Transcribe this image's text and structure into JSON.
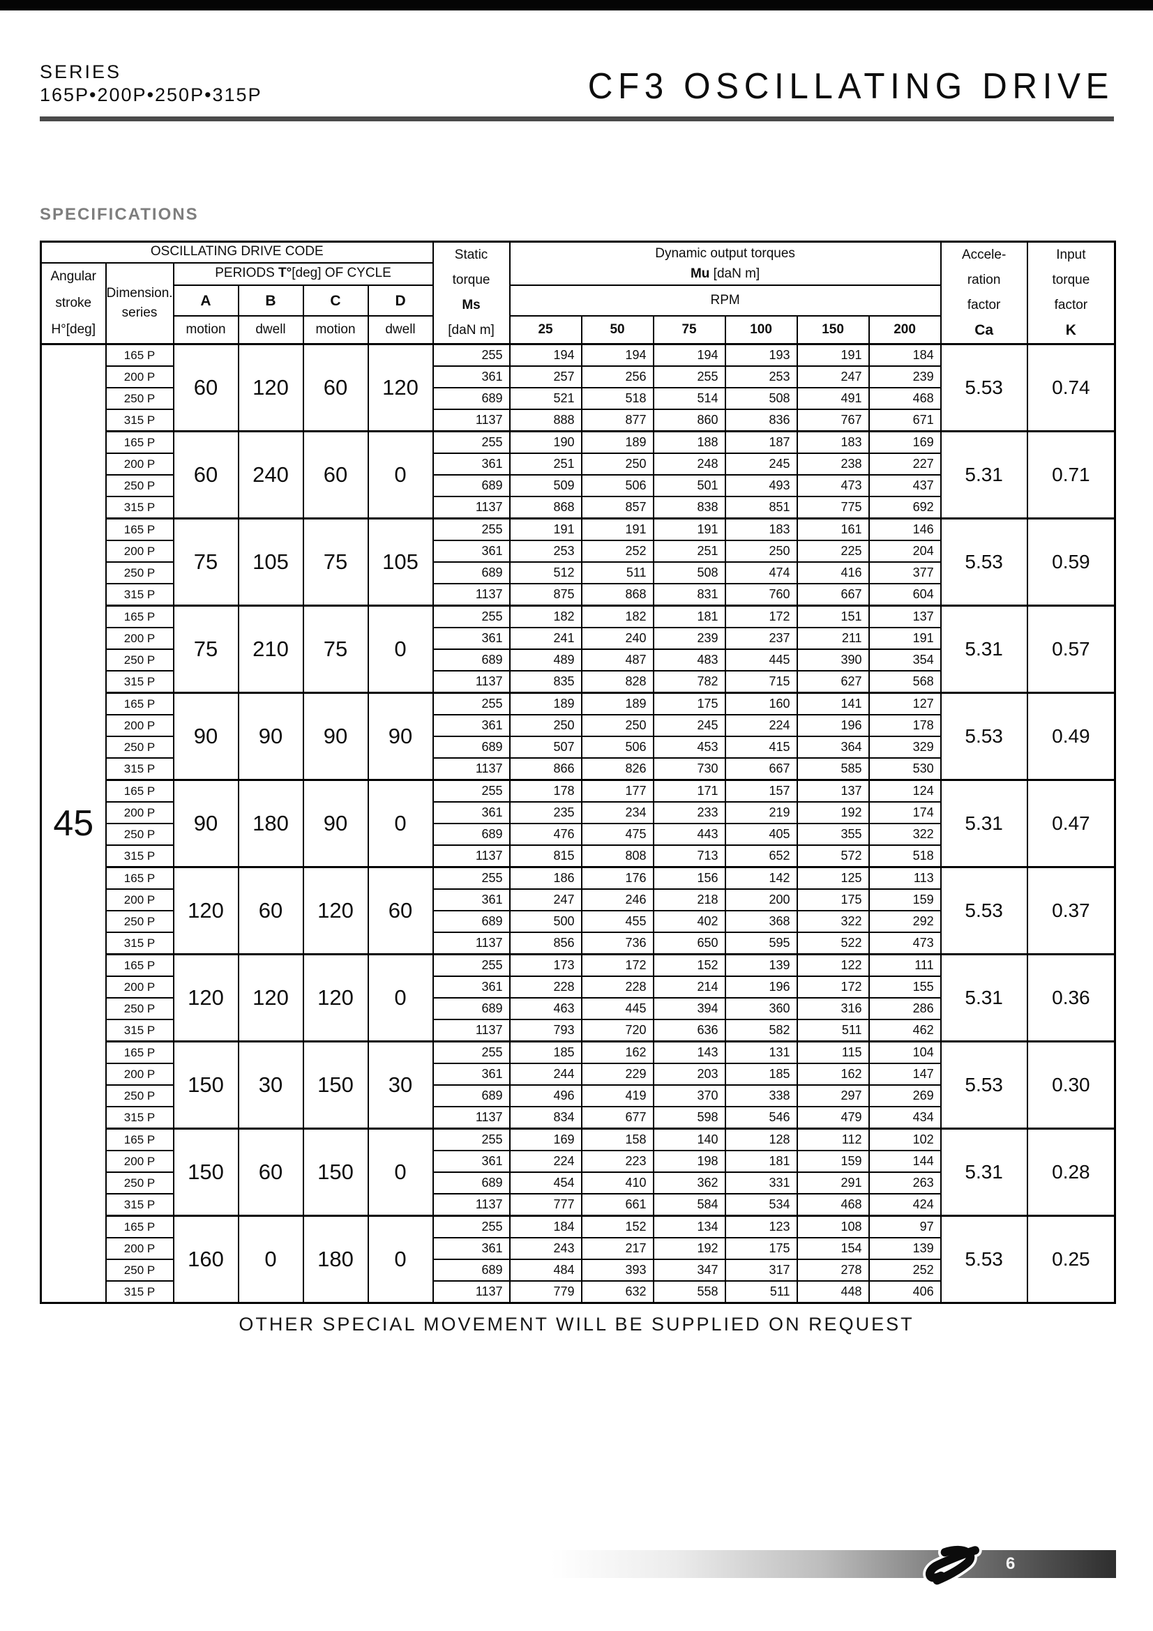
{
  "page": {
    "series_label": "SERIES",
    "series_models": "165P•200P•250P•315P",
    "title": "CF3 OSCILLATING DRIVE",
    "section_heading": "SPECIFICATIONS",
    "note": "OTHER SPECIAL MOVEMENT WILL BE SUPPLIED ON REQUEST",
    "page_number": "6"
  },
  "colors": {
    "header_rule": "#4a4a4a",
    "section_heading": "#7e7e7e",
    "top_bar": "#050505",
    "footer_bar_dark": "#2e2e2e"
  },
  "table": {
    "header": {
      "drive_code": "OSCILLATING DRIVE CODE",
      "angular_stroke_lines": [
        "Angular",
        "stroke",
        "H°[deg]"
      ],
      "dimension_series_lines": [
        "Dimension.",
        "series"
      ],
      "periods_prefix": "PERIODS ",
      "periods_symbol": "T°",
      "periods_suffix": "[deg] OF CYCLE",
      "period_columns": [
        {
          "letter": "A",
          "sub": "motion"
        },
        {
          "letter": "B",
          "sub": "dwell"
        },
        {
          "letter": "C",
          "sub": "motion"
        },
        {
          "letter": "D",
          "sub": "dwell"
        }
      ],
      "static_torque_lines": [
        "Static",
        "torque",
        "Ms",
        "[daN m]"
      ],
      "dynamic_title": "Dynamic output torques",
      "dynamic_symbol": "Mu",
      "dynamic_unit": " [daN m]",
      "rpm_label": "RPM",
      "rpm_values": [
        "25",
        "50",
        "75",
        "100",
        "150",
        "200"
      ],
      "acceleration_lines": [
        "Accele-",
        "ration",
        "factor",
        "Ca"
      ],
      "input_factor_lines": [
        "Input",
        "torque",
        "factor",
        "K"
      ]
    },
    "angular_stroke_value": "45",
    "groups": [
      {
        "periods": [
          "60",
          "120",
          "60",
          "120"
        ],
        "ca": "5.53",
        "k": "0.74",
        "rows": [
          {
            "series": "165 P",
            "ms": "255",
            "mu": [
              "194",
              "194",
              "194",
              "193",
              "191",
              "184"
            ]
          },
          {
            "series": "200 P",
            "ms": "361",
            "mu": [
              "257",
              "256",
              "255",
              "253",
              "247",
              "239"
            ]
          },
          {
            "series": "250 P",
            "ms": "689",
            "mu": [
              "521",
              "518",
              "514",
              "508",
              "491",
              "468"
            ]
          },
          {
            "series": "315 P",
            "ms": "1137",
            "mu": [
              "888",
              "877",
              "860",
              "836",
              "767",
              "671"
            ]
          }
        ]
      },
      {
        "periods": [
          "60",
          "240",
          "60",
          "0"
        ],
        "ca": "5.31",
        "k": "0.71",
        "rows": [
          {
            "series": "165 P",
            "ms": "255",
            "mu": [
              "190",
              "189",
              "188",
              "187",
              "183",
              "169"
            ]
          },
          {
            "series": "200 P",
            "ms": "361",
            "mu": [
              "251",
              "250",
              "248",
              "245",
              "238",
              "227"
            ]
          },
          {
            "series": "250 P",
            "ms": "689",
            "mu": [
              "509",
              "506",
              "501",
              "493",
              "473",
              "437"
            ]
          },
          {
            "series": "315 P",
            "ms": "1137",
            "mu": [
              "868",
              "857",
              "838",
              "851",
              "775",
              "692"
            ]
          }
        ]
      },
      {
        "periods": [
          "75",
          "105",
          "75",
          "105"
        ],
        "ca": "5.53",
        "k": "0.59",
        "rows": [
          {
            "series": "165 P",
            "ms": "255",
            "mu": [
              "191",
              "191",
              "191",
              "183",
              "161",
              "146"
            ]
          },
          {
            "series": "200 P",
            "ms": "361",
            "mu": [
              "253",
              "252",
              "251",
              "250",
              "225",
              "204"
            ]
          },
          {
            "series": "250 P",
            "ms": "689",
            "mu": [
              "512",
              "511",
              "508",
              "474",
              "416",
              "377"
            ]
          },
          {
            "series": "315 P",
            "ms": "1137",
            "mu": [
              "875",
              "868",
              "831",
              "760",
              "667",
              "604"
            ]
          }
        ]
      },
      {
        "periods": [
          "75",
          "210",
          "75",
          "0"
        ],
        "ca": "5.31",
        "k": "0.57",
        "rows": [
          {
            "series": "165 P",
            "ms": "255",
            "mu": [
              "182",
              "182",
              "181",
              "172",
              "151",
              "137"
            ]
          },
          {
            "series": "200 P",
            "ms": "361",
            "mu": [
              "241",
              "240",
              "239",
              "237",
              "211",
              "191"
            ]
          },
          {
            "series": "250 P",
            "ms": "689",
            "mu": [
              "489",
              "487",
              "483",
              "445",
              "390",
              "354"
            ]
          },
          {
            "series": "315 P",
            "ms": "1137",
            "mu": [
              "835",
              "828",
              "782",
              "715",
              "627",
              "568"
            ]
          }
        ]
      },
      {
        "periods": [
          "90",
          "90",
          "90",
          "90"
        ],
        "ca": "5.53",
        "k": "0.49",
        "rows": [
          {
            "series": "165 P",
            "ms": "255",
            "mu": [
              "189",
              "189",
              "175",
              "160",
              "141",
              "127"
            ]
          },
          {
            "series": "200 P",
            "ms": "361",
            "mu": [
              "250",
              "250",
              "245",
              "224",
              "196",
              "178"
            ]
          },
          {
            "series": "250 P",
            "ms": "689",
            "mu": [
              "507",
              "506",
              "453",
              "415",
              "364",
              "329"
            ]
          },
          {
            "series": "315 P",
            "ms": "1137",
            "mu": [
              "866",
              "826",
              "730",
              "667",
              "585",
              "530"
            ]
          }
        ]
      },
      {
        "periods": [
          "90",
          "180",
          "90",
          "0"
        ],
        "ca": "5.31",
        "k": "0.47",
        "rows": [
          {
            "series": "165 P",
            "ms": "255",
            "mu": [
              "178",
              "177",
              "171",
              "157",
              "137",
              "124"
            ]
          },
          {
            "series": "200 P",
            "ms": "361",
            "mu": [
              "235",
              "234",
              "233",
              "219",
              "192",
              "174"
            ]
          },
          {
            "series": "250 P",
            "ms": "689",
            "mu": [
              "476",
              "475",
              "443",
              "405",
              "355",
              "322"
            ]
          },
          {
            "series": "315 P",
            "ms": "1137",
            "mu": [
              "815",
              "808",
              "713",
              "652",
              "572",
              "518"
            ]
          }
        ]
      },
      {
        "periods": [
          "120",
          "60",
          "120",
          "60"
        ],
        "ca": "5.53",
        "k": "0.37",
        "rows": [
          {
            "series": "165 P",
            "ms": "255",
            "mu": [
              "186",
              "176",
              "156",
              "142",
              "125",
              "113"
            ]
          },
          {
            "series": "200 P",
            "ms": "361",
            "mu": [
              "247",
              "246",
              "218",
              "200",
              "175",
              "159"
            ]
          },
          {
            "series": "250 P",
            "ms": "689",
            "mu": [
              "500",
              "455",
              "402",
              "368",
              "322",
              "292"
            ]
          },
          {
            "series": "315 P",
            "ms": "1137",
            "mu": [
              "856",
              "736",
              "650",
              "595",
              "522",
              "473"
            ]
          }
        ]
      },
      {
        "periods": [
          "120",
          "120",
          "120",
          "0"
        ],
        "ca": "5.31",
        "k": "0.36",
        "rows": [
          {
            "series": "165 P",
            "ms": "255",
            "mu": [
              "173",
              "172",
              "152",
              "139",
              "122",
              "111"
            ]
          },
          {
            "series": "200 P",
            "ms": "361",
            "mu": [
              "228",
              "228",
              "214",
              "196",
              "172",
              "155"
            ]
          },
          {
            "series": "250 P",
            "ms": "689",
            "mu": [
              "463",
              "445",
              "394",
              "360",
              "316",
              "286"
            ]
          },
          {
            "series": "315 P",
            "ms": "1137",
            "mu": [
              "793",
              "720",
              "636",
              "582",
              "511",
              "462"
            ]
          }
        ]
      },
      {
        "periods": [
          "150",
          "30",
          "150",
          "30"
        ],
        "ca": "5.53",
        "k": "0.30",
        "rows": [
          {
            "series": "165 P",
            "ms": "255",
            "mu": [
              "185",
              "162",
              "143",
              "131",
              "115",
              "104"
            ]
          },
          {
            "series": "200 P",
            "ms": "361",
            "mu": [
              "244",
              "229",
              "203",
              "185",
              "162",
              "147"
            ]
          },
          {
            "series": "250 P",
            "ms": "689",
            "mu": [
              "496",
              "419",
              "370",
              "338",
              "297",
              "269"
            ]
          },
          {
            "series": "315 P",
            "ms": "1137",
            "mu": [
              "834",
              "677",
              "598",
              "546",
              "479",
              "434"
            ]
          }
        ]
      },
      {
        "periods": [
          "150",
          "60",
          "150",
          "0"
        ],
        "ca": "5.31",
        "k": "0.28",
        "rows": [
          {
            "series": "165 P",
            "ms": "255",
            "mu": [
              "169",
              "158",
              "140",
              "128",
              "112",
              "102"
            ]
          },
          {
            "series": "200 P",
            "ms": "361",
            "mu": [
              "224",
              "223",
              "198",
              "181",
              "159",
              "144"
            ]
          },
          {
            "series": "250 P",
            "ms": "689",
            "mu": [
              "454",
              "410",
              "362",
              "331",
              "291",
              "263"
            ]
          },
          {
            "series": "315 P",
            "ms": "1137",
            "mu": [
              "777",
              "661",
              "584",
              "534",
              "468",
              "424"
            ]
          }
        ]
      },
      {
        "periods": [
          "160",
          "0",
          "180",
          "0"
        ],
        "ca": "5.53",
        "k": "0.25",
        "rows": [
          {
            "series": "165 P",
            "ms": "255",
            "mu": [
              "184",
              "152",
              "134",
              "123",
              "108",
              "97"
            ]
          },
          {
            "series": "200 P",
            "ms": "361",
            "mu": [
              "243",
              "217",
              "192",
              "175",
              "154",
              "139"
            ]
          },
          {
            "series": "250 P",
            "ms": "689",
            "mu": [
              "484",
              "393",
              "347",
              "317",
              "278",
              "252"
            ]
          },
          {
            "series": "315 P",
            "ms": "1137",
            "mu": [
              "779",
              "632",
              "558",
              "511",
              "448",
              "406"
            ]
          }
        ]
      }
    ]
  }
}
